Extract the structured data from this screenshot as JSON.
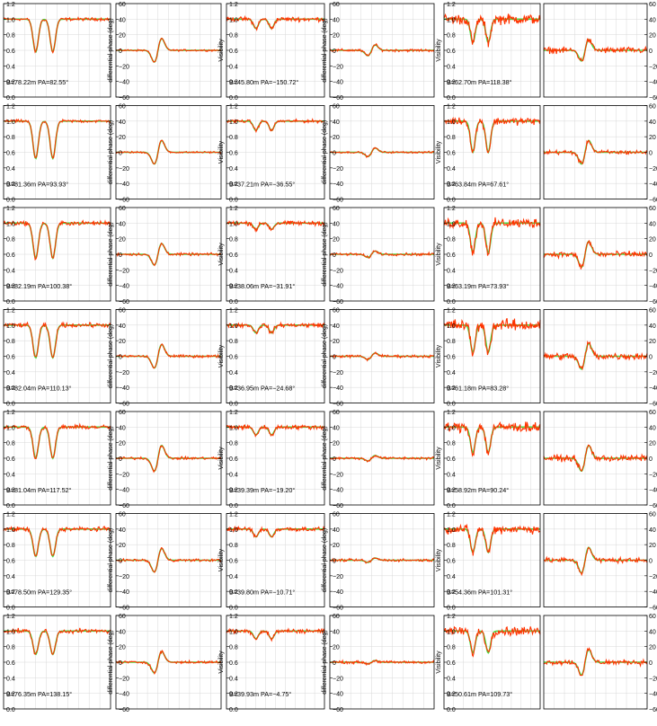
{
  "chart_data": {
    "type": "line",
    "description_layout": "7 rows x 3 baseline blocks; each block = visibility panel + differential phase panel",
    "colors": {
      "observed": "#ff3300",
      "model": "#44dd44",
      "grid": "#d8d8d8",
      "frame": "#000000"
    },
    "visibility_axis": {
      "ylabel": "Visibility",
      "ylim": [
        0.0,
        1.2
      ],
      "ticks": [
        "0.0",
        "0.2",
        "0.4",
        "0.6",
        "0.8",
        "1.0",
        "1.2"
      ]
    },
    "phase_axis": {
      "ylabel": "differential phase (deg)",
      "ylim": [
        -60,
        60
      ],
      "ticks": [
        "−60",
        "−40",
        "−20",
        "0",
        "20",
        "40",
        "60"
      ]
    },
    "baselines": [
      [
        {
          "label": "B=78.22m  PA=82.55°",
          "dip": 0.42,
          "phase_amp": 22,
          "noise": 0.02
        },
        {
          "label": "B=45.80m  PA=−150.72°",
          "dip": 0.12,
          "phase_amp": 10,
          "noise": 0.03
        },
        {
          "label": "B=62.70m  PA=118.38°",
          "dip": 0.3,
          "phase_amp": 20,
          "noise": 0.07
        }
      ],
      [
        {
          "label": "B=81.36m  PA=93.93°",
          "dip": 0.48,
          "phase_amp": 22,
          "noise": 0.02
        },
        {
          "label": "B=37.21m  PA=−36.55°",
          "dip": 0.12,
          "phase_amp": 8,
          "noise": 0.02
        },
        {
          "label": "B=63.84m  PA=67.61°",
          "dip": 0.4,
          "phase_amp": 22,
          "noise": 0.05
        }
      ],
      [
        {
          "label": "B=82.19m  PA=100.38°",
          "dip": 0.45,
          "phase_amp": 20,
          "noise": 0.03
        },
        {
          "label": "B=38.06m  PA=−31.91°",
          "dip": 0.08,
          "phase_amp": 6,
          "noise": 0.03
        },
        {
          "label": "B=63.19m  PA=73.93°",
          "dip": 0.38,
          "phase_amp": 24,
          "noise": 0.07
        }
      ],
      [
        {
          "label": "B=82.04m  PA=110.13°",
          "dip": 0.42,
          "phase_amp": 22,
          "noise": 0.03
        },
        {
          "label": "B=36.95m  PA=−24.68°",
          "dip": 0.1,
          "phase_amp": 6,
          "noise": 0.03
        },
        {
          "label": "B=61.18m  PA=83.28°",
          "dip": 0.35,
          "phase_amp": 24,
          "noise": 0.08
        }
      ],
      [
        {
          "label": "B=81.04m  PA=117.52°",
          "dip": 0.4,
          "phase_amp": 24,
          "noise": 0.03
        },
        {
          "label": "B=39.39m  PA=−19.20°",
          "dip": 0.1,
          "phase_amp": 5,
          "noise": 0.03
        },
        {
          "label": "B=58.92m  PA=90.24°",
          "dip": 0.33,
          "phase_amp": 24,
          "noise": 0.07
        }
      ],
      [
        {
          "label": "B=78.50m  PA=129.35°",
          "dip": 0.35,
          "phase_amp": 22,
          "noise": 0.03
        },
        {
          "label": "B=39.80m  PA=−10.71°",
          "dip": 0.1,
          "phase_amp": 4,
          "noise": 0.03
        },
        {
          "label": "B=54.36m  PA=101.31°",
          "dip": 0.3,
          "phase_amp": 24,
          "noise": 0.06
        }
      ],
      [
        {
          "label": "B=76.35m  PA=138.15°",
          "dip": 0.3,
          "phase_amp": 20,
          "noise": 0.03
        },
        {
          "label": "B=39.93m  PA=−4.75°",
          "dip": 0.1,
          "phase_amp": 3,
          "noise": 0.03
        },
        {
          "label": "B=50.61m  PA=109.73°",
          "dip": 0.28,
          "phase_amp": 24,
          "noise": 0.06
        }
      ]
    ]
  }
}
